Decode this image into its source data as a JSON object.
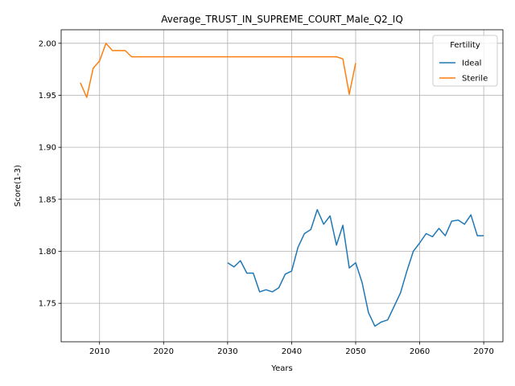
{
  "chart_data": {
    "type": "line",
    "title": "Average_TRUST_IN_SUPREME_COURT_Male_Q2_IQ",
    "xlabel": "Years",
    "ylabel": "Score(1-3)",
    "xlim": [
      2004,
      2073
    ],
    "ylim": [
      1.713,
      2.013
    ],
    "xticks": [
      2010,
      2020,
      2030,
      2040,
      2050,
      2060,
      2070
    ],
    "yticks": [
      1.75,
      1.8,
      1.85,
      1.9,
      1.95,
      2.0
    ],
    "ytick_labels": [
      "1.75",
      "1.80",
      "1.85",
      "1.90",
      "1.95",
      "2.00"
    ],
    "grid": true,
    "legend": {
      "title": "Fertility",
      "placement": "top-right"
    },
    "series": [
      {
        "name": "Ideal",
        "color": "#1f77b4",
        "x": [
          2030,
          2031,
          2032,
          2033,
          2034,
          2035,
          2036,
          2037,
          2038,
          2039,
          2040,
          2041,
          2042,
          2043,
          2044,
          2045,
          2046,
          2047,
          2048,
          2049,
          2050,
          2051,
          2052,
          2053,
          2054,
          2055,
          2056,
          2057,
          2058,
          2059,
          2060,
          2061,
          2062,
          2063,
          2064,
          2065,
          2066,
          2067,
          2068,
          2069,
          2070
        ],
        "y": [
          1.789,
          1.785,
          1.791,
          1.779,
          1.779,
          1.761,
          1.763,
          1.761,
          1.765,
          1.778,
          1.781,
          1.804,
          1.817,
          1.821,
          1.84,
          1.826,
          1.834,
          1.806,
          1.825,
          1.784,
          1.789,
          1.77,
          1.741,
          1.728,
          1.732,
          1.734,
          1.747,
          1.76,
          1.781,
          1.8,
          1.808,
          1.817,
          1.814,
          1.822,
          1.815,
          1.829,
          1.83,
          1.826,
          1.835,
          1.815,
          1.815
        ]
      },
      {
        "name": "Sterile",
        "color": "#ff7f0e",
        "x": [
          2007,
          2008,
          2009,
          2010,
          2011,
          2012,
          2013,
          2014,
          2015,
          2016,
          2017,
          2018,
          2019,
          2020,
          2025,
          2030,
          2035,
          2040,
          2045,
          2047,
          2048,
          2049,
          2050
        ],
        "y": [
          1.962,
          1.948,
          1.976,
          1.983,
          2.0,
          1.993,
          1.993,
          1.993,
          1.987,
          1.987,
          1.987,
          1.987,
          1.987,
          1.987,
          1.987,
          1.987,
          1.987,
          1.987,
          1.987,
          1.987,
          1.985,
          1.951,
          1.981
        ]
      }
    ]
  }
}
